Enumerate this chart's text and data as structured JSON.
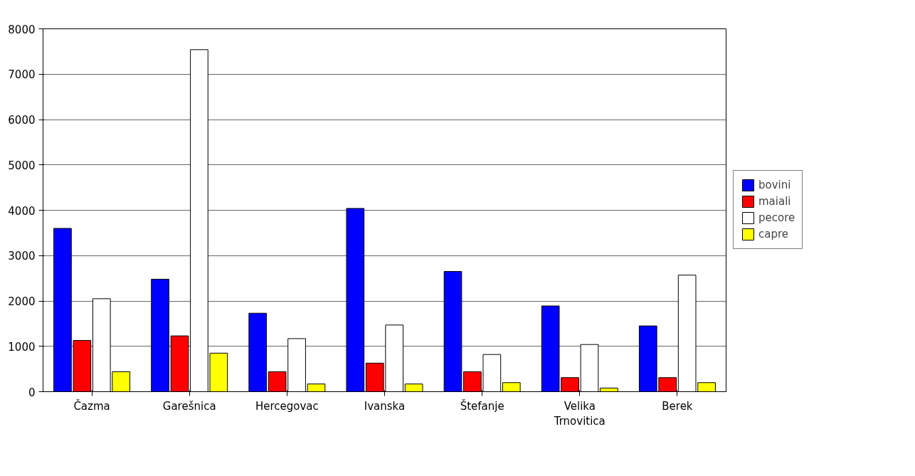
{
  "chart_data": {
    "type": "bar",
    "categories": [
      "Čazma",
      "Garešnica",
      "Hercegovac",
      "Ivanska",
      "Štefanje",
      "Velika Trnovitica",
      "Berek"
    ],
    "series": [
      {
        "name": "bovini",
        "color": "#0000ff",
        "values": [
          3600,
          2480,
          1730,
          4040,
          2650,
          1890,
          1450
        ]
      },
      {
        "name": "maiali",
        "color": "#ff0000",
        "values": [
          1130,
          1230,
          440,
          630,
          440,
          310,
          310
        ]
      },
      {
        "name": "pecore",
        "color": "#ffffff",
        "values": [
          2050,
          7540,
          1170,
          1470,
          820,
          1040,
          2570
        ]
      },
      {
        "name": "capre",
        "color": "#ffff00",
        "values": [
          440,
          850,
          170,
          170,
          200,
          80,
          200
        ]
      }
    ],
    "ylim": [
      0,
      8000
    ],
    "yticks": [
      0,
      1000,
      2000,
      3000,
      4000,
      5000,
      6000,
      7000,
      8000
    ],
    "grid": "y",
    "legend": "right"
  }
}
